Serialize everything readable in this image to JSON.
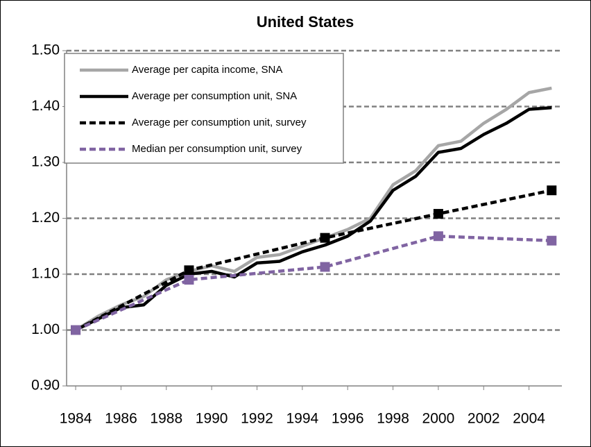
{
  "chart_data": {
    "type": "line",
    "title": "United States",
    "x": [
      1984,
      1985,
      1986,
      1987,
      1988,
      1989,
      1990,
      1991,
      1992,
      1993,
      1994,
      1995,
      1996,
      1997,
      1998,
      1999,
      2000,
      2001,
      2002,
      2003,
      2004,
      2005
    ],
    "series": [
      {
        "name": "Average per capita income, SNA",
        "color": "#a6a6a6",
        "dash": false,
        "markers": false,
        "values": [
          1.0,
          1.025,
          1.045,
          1.06,
          1.09,
          1.105,
          1.115,
          1.105,
          1.13,
          1.135,
          1.15,
          1.165,
          1.18,
          1.2,
          1.26,
          1.285,
          1.33,
          1.338,
          1.37,
          1.395,
          1.425,
          1.433
        ]
      },
      {
        "name": "Average per consumption unit, SNA",
        "color": "#000000",
        "dash": false,
        "markers": false,
        "values": [
          1.0,
          1.02,
          1.04,
          1.045,
          1.08,
          1.1,
          1.105,
          1.095,
          1.12,
          1.123,
          1.14,
          1.152,
          1.168,
          1.195,
          1.25,
          1.275,
          1.318,
          1.325,
          1.35,
          1.37,
          1.395,
          1.398
        ]
      },
      {
        "name": "Average per consumption unit, survey",
        "color": "#000000",
        "dash": true,
        "markers": true,
        "x": [
          1984,
          1989,
          1995,
          2000,
          2005
        ],
        "values": [
          1.0,
          1.107,
          1.165,
          1.208,
          1.25
        ]
      },
      {
        "name": "Median per consumption unit, survey",
        "color": "#8064a2",
        "dash": true,
        "markers": true,
        "x": [
          1984,
          1989,
          1995,
          2000,
          2005
        ],
        "values": [
          1.0,
          1.09,
          1.113,
          1.168,
          1.16
        ]
      }
    ],
    "xlim": [
      1983.6,
      2005.45
    ],
    "xticks": [
      1984,
      1986,
      1988,
      1990,
      1992,
      1994,
      1996,
      1998,
      2000,
      2002,
      2004
    ],
    "ylim": [
      0.9,
      1.5
    ],
    "yticks": [
      {
        "value": 0.9,
        "label": "0.90"
      },
      {
        "value": 1.0,
        "label": "1.00"
      },
      {
        "value": 1.1,
        "label": "1.10"
      },
      {
        "value": 1.2,
        "label": "1.20"
      },
      {
        "value": 1.3,
        "label": "1.30"
      },
      {
        "value": 1.4,
        "label": "1.40"
      },
      {
        "value": 1.5,
        "label": "1.50"
      }
    ],
    "grid": true,
    "legend": "top-left"
  }
}
